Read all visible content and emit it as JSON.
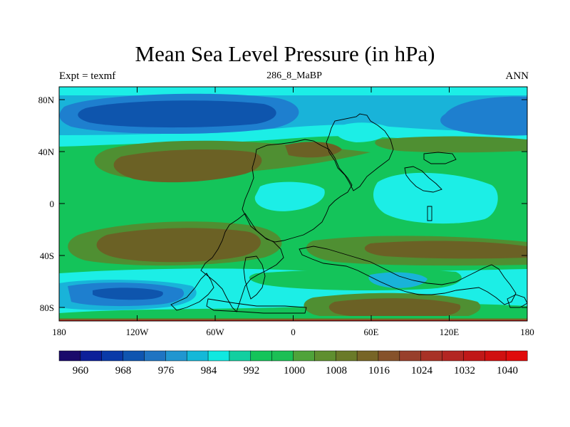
{
  "title": "Mean Sea Level Pressure (in hPa)",
  "subtitle_left": "Expt = texmf",
  "subtitle_center": "286_8_MaBP",
  "subtitle_right": "ANN",
  "axes": {
    "x_ticks": [
      "180",
      "120W",
      "60W",
      "0",
      "60E",
      "120E",
      "180"
    ],
    "y_ticks": [
      "80N",
      "40N",
      "0",
      "40S",
      "80S"
    ]
  },
  "colorbar": {
    "labels": [
      "960",
      "968",
      "976",
      "984",
      "992",
      "1000",
      "1008",
      "1016",
      "1024",
      "1032",
      "1040"
    ],
    "colors": [
      "#1a0a6b",
      "#0c1f99",
      "#0a3aa8",
      "#0f55b0",
      "#1f74c2",
      "#2196d0",
      "#14b8d8",
      "#10e8e0",
      "#12cfa0",
      "#14c45a",
      "#1cbf55",
      "#4fa33a",
      "#5f8f2f",
      "#6a7a28",
      "#776526",
      "#86522a",
      "#983f2b",
      "#a83226",
      "#b32622",
      "#c01818",
      "#d01010",
      "#e00c0c"
    ]
  },
  "colors": {
    "ocean_green": "#14c45a",
    "cyan": "#1ceee6",
    "light_blue": "#19b3d9",
    "blue": "#1e7fcf",
    "dark_blue": "#0e55ad",
    "olive": "#4f8f32",
    "brown": "#6b6125"
  }
}
